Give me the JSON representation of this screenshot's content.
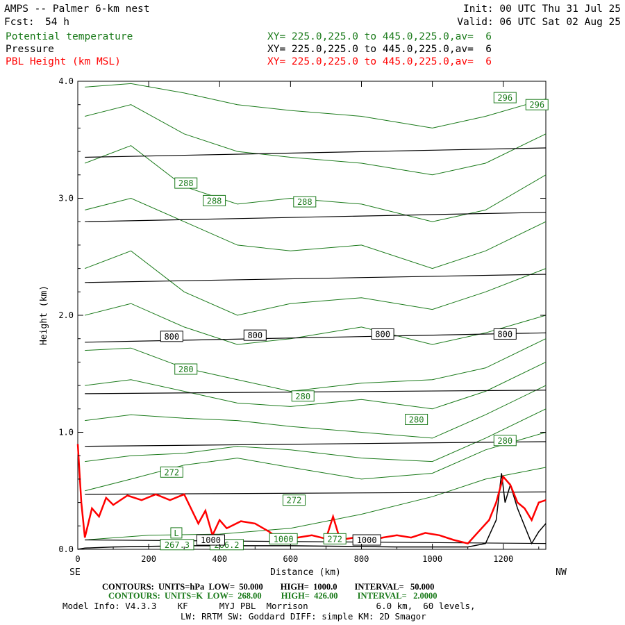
{
  "header": {
    "title": "AMPS -- Palmer 6-km nest",
    "fcst_label": "Fcst:",
    "fcst_value": "54 h",
    "init": "Init: 00 UTC Thu 31 Jul 25",
    "valid": "Valid: 06 UTC Sat 02 Aug 25",
    "fields": [
      {
        "name": "Potential temperature",
        "xy": "XY= 225.0,225.0 to 445.0,225.0,av=  6",
        "color": "#1a7a1a"
      },
      {
        "name": "Pressure",
        "xy": "XY= 225.0,225.0 to 445.0,225.0,av=  6",
        "color": "#000000"
      },
      {
        "name": "PBL Height (km MSL)",
        "xy": "XY= 225.0,225.0 to 445.0,225.0,av=  6",
        "color": "#ff0000"
      }
    ]
  },
  "axes": {
    "ylabel": "Height (km)",
    "xlabel": "Distance (km)",
    "left_end": "SE",
    "right_end": "NW"
  },
  "footer": {
    "pressure_contours": "CONTOURS:  UNITS=hPa  LOW=  50.000        HIGH=  1000.0        INTERVAL=   50.000",
    "theta_contours": "CONTOURS:  UNITS=K  LOW=  268.00         HIGH=  426.00         INTERVAL=   2.0000",
    "model_info": "Model Info: V4.3.3    KF      MYJ PBL  Morrison             6.0 km,  60 levels,",
    "physics": "LW: RRTM SW: Goddard DIFF: simple KM: 2D Smagor"
  },
  "chart_data": {
    "type": "line",
    "xlim": [
      0,
      1320
    ],
    "ylim": [
      0,
      4.0
    ],
    "x_ticks": [
      0,
      200,
      400,
      600,
      800,
      1000,
      1200
    ],
    "y_ticks": [
      0.0,
      1.0,
      2.0,
      3.0,
      4.0
    ],
    "y_tick_labels": [
      "0.0",
      "1.0",
      "2.0",
      "3.0",
      "4.0"
    ],
    "colors": {
      "theta": "#1a7a1a",
      "pressure": "#000000",
      "pbl": "#ff0000"
    },
    "pressure_isobars": [
      {
        "y": [
          0.08,
          0.05
        ]
      },
      {
        "y": [
          0.47,
          0.49
        ]
      },
      {
        "y": [
          0.88,
          0.92
        ]
      },
      {
        "y": [
          1.33,
          1.36
        ]
      },
      {
        "y": [
          1.77,
          1.85
        ]
      },
      {
        "y": [
          2.28,
          2.35
        ]
      },
      {
        "y": [
          2.8,
          2.88
        ]
      },
      {
        "y": [
          3.35,
          3.43
        ]
      }
    ],
    "pressure_labels": [
      {
        "text": "1000",
        "x": 375,
        "y": 0.08
      },
      {
        "text": "1000",
        "x": 815,
        "y": 0.08
      },
      {
        "text": "800",
        "x": 265,
        "y": 1.82
      },
      {
        "text": "800",
        "x": 500,
        "y": 1.83
      },
      {
        "text": "800",
        "x": 860,
        "y": 1.84
      },
      {
        "text": "800",
        "x": 1205,
        "y": 1.84
      }
    ],
    "theta_lines": [
      {
        "x": [
          20,
          200,
          400,
          600,
          800,
          1000,
          1150,
          1320
        ],
        "y": [
          0.08,
          0.12,
          0.13,
          0.18,
          0.3,
          0.45,
          0.6,
          0.7
        ]
      },
      {
        "x": [
          20,
          150,
          300,
          450,
          600,
          800,
          1000,
          1150,
          1320
        ],
        "y": [
          0.5,
          0.6,
          0.72,
          0.78,
          0.7,
          0.6,
          0.65,
          0.85,
          1.0
        ]
      },
      {
        "x": [
          20,
          150,
          300,
          450,
          600,
          800,
          1000,
          1150,
          1320
        ],
        "y": [
          0.75,
          0.8,
          0.82,
          0.88,
          0.85,
          0.78,
          0.75,
          0.95,
          1.2
        ]
      },
      {
        "x": [
          20,
          150,
          300,
          450,
          600,
          800,
          1000,
          1150,
          1320
        ],
        "y": [
          1.1,
          1.15,
          1.12,
          1.1,
          1.05,
          1.0,
          0.95,
          1.15,
          1.4
        ]
      },
      {
        "x": [
          20,
          150,
          300,
          450,
          600,
          800,
          1000,
          1150,
          1320
        ],
        "y": [
          1.4,
          1.45,
          1.35,
          1.25,
          1.22,
          1.28,
          1.2,
          1.35,
          1.6
        ]
      },
      {
        "x": [
          20,
          150,
          300,
          450,
          600,
          800,
          1000,
          1150,
          1320
        ],
        "y": [
          1.7,
          1.72,
          1.55,
          1.45,
          1.35,
          1.42,
          1.45,
          1.55,
          1.8
        ]
      },
      {
        "x": [
          20,
          150,
          300,
          450,
          600,
          800,
          1000,
          1150,
          1320
        ],
        "y": [
          2.0,
          2.1,
          1.9,
          1.75,
          1.8,
          1.9,
          1.75,
          1.85,
          2.0
        ]
      },
      {
        "x": [
          20,
          150,
          300,
          450,
          600,
          800,
          1000,
          1150,
          1320
        ],
        "y": [
          2.4,
          2.55,
          2.2,
          2.0,
          2.1,
          2.15,
          2.05,
          2.2,
          2.4
        ]
      },
      {
        "x": [
          20,
          150,
          300,
          450,
          600,
          800,
          1000,
          1150,
          1320
        ],
        "y": [
          2.9,
          3.0,
          2.8,
          2.6,
          2.55,
          2.6,
          2.4,
          2.55,
          2.8
        ]
      },
      {
        "x": [
          20,
          150,
          300,
          450,
          600,
          800,
          1000,
          1150,
          1320
        ],
        "y": [
          3.3,
          3.45,
          3.1,
          2.95,
          3.0,
          2.95,
          2.8,
          2.9,
          3.2
        ]
      },
      {
        "x": [
          20,
          150,
          300,
          450,
          600,
          800,
          1000,
          1150,
          1320
        ],
        "y": [
          3.7,
          3.8,
          3.55,
          3.4,
          3.35,
          3.3,
          3.2,
          3.3,
          3.55
        ]
      },
      {
        "x": [
          20,
          150,
          300,
          450,
          600,
          800,
          1000,
          1150,
          1320
        ],
        "y": [
          3.95,
          3.98,
          3.9,
          3.8,
          3.75,
          3.7,
          3.6,
          3.7,
          3.85
        ]
      }
    ],
    "theta_labels": [
      {
        "text": "296",
        "x": 1205,
        "y": 3.86
      },
      {
        "text": "296",
        "x": 1295,
        "y": 3.8
      },
      {
        "text": "288",
        "x": 305,
        "y": 3.13
      },
      {
        "text": "288",
        "x": 385,
        "y": 2.98
      },
      {
        "text": "288",
        "x": 640,
        "y": 2.97
      },
      {
        "text": "280",
        "x": 305,
        "y": 1.54
      },
      {
        "text": "280",
        "x": 635,
        "y": 1.31
      },
      {
        "text": "280",
        "x": 955,
        "y": 1.11
      },
      {
        "text": "280",
        "x": 1205,
        "y": 0.93
      },
      {
        "text": "272",
        "x": 265,
        "y": 0.66
      },
      {
        "text": "272",
        "x": 610,
        "y": 0.42
      },
      {
        "text": "272",
        "x": 725,
        "y": 0.09
      },
      {
        "text": "L",
        "x": 278,
        "y": 0.14
      },
      {
        "text": "267.3",
        "x": 280,
        "y": 0.04
      },
      {
        "text": "266.2",
        "x": 420,
        "y": 0.04
      },
      {
        "text": "1000",
        "x": 580,
        "y": 0.09
      }
    ],
    "pbl_height": {
      "x": [
        0,
        10,
        20,
        40,
        60,
        80,
        100,
        140,
        180,
        220,
        260,
        300,
        340,
        360,
        380,
        400,
        420,
        460,
        500,
        540,
        580,
        620,
        660,
        700,
        720,
        740,
        780,
        820,
        860,
        900,
        940,
        980,
        1020,
        1060,
        1100,
        1130,
        1160,
        1180,
        1200,
        1220,
        1240,
        1260,
        1280,
        1300,
        1320
      ],
      "y": [
        0.9,
        0.4,
        0.1,
        0.35,
        0.28,
        0.44,
        0.38,
        0.46,
        0.42,
        0.47,
        0.42,
        0.47,
        0.22,
        0.33,
        0.12,
        0.25,
        0.18,
        0.24,
        0.22,
        0.15,
        0.06,
        0.1,
        0.12,
        0.09,
        0.28,
        0.08,
        0.1,
        0.07,
        0.1,
        0.12,
        0.1,
        0.14,
        0.12,
        0.08,
        0.05,
        0.15,
        0.25,
        0.4,
        0.62,
        0.55,
        0.4,
        0.35,
        0.25,
        0.4,
        0.42
      ]
    },
    "terrain": {
      "x": [
        0,
        20,
        100,
        300,
        600,
        900,
        1100,
        1150,
        1180,
        1195,
        1205,
        1220,
        1240,
        1260,
        1280,
        1300,
        1320
      ],
      "y": [
        0.0,
        0.01,
        0.02,
        0.03,
        0.03,
        0.02,
        0.02,
        0.05,
        0.25,
        0.65,
        0.4,
        0.55,
        0.35,
        0.2,
        0.05,
        0.15,
        0.22
      ]
    }
  }
}
